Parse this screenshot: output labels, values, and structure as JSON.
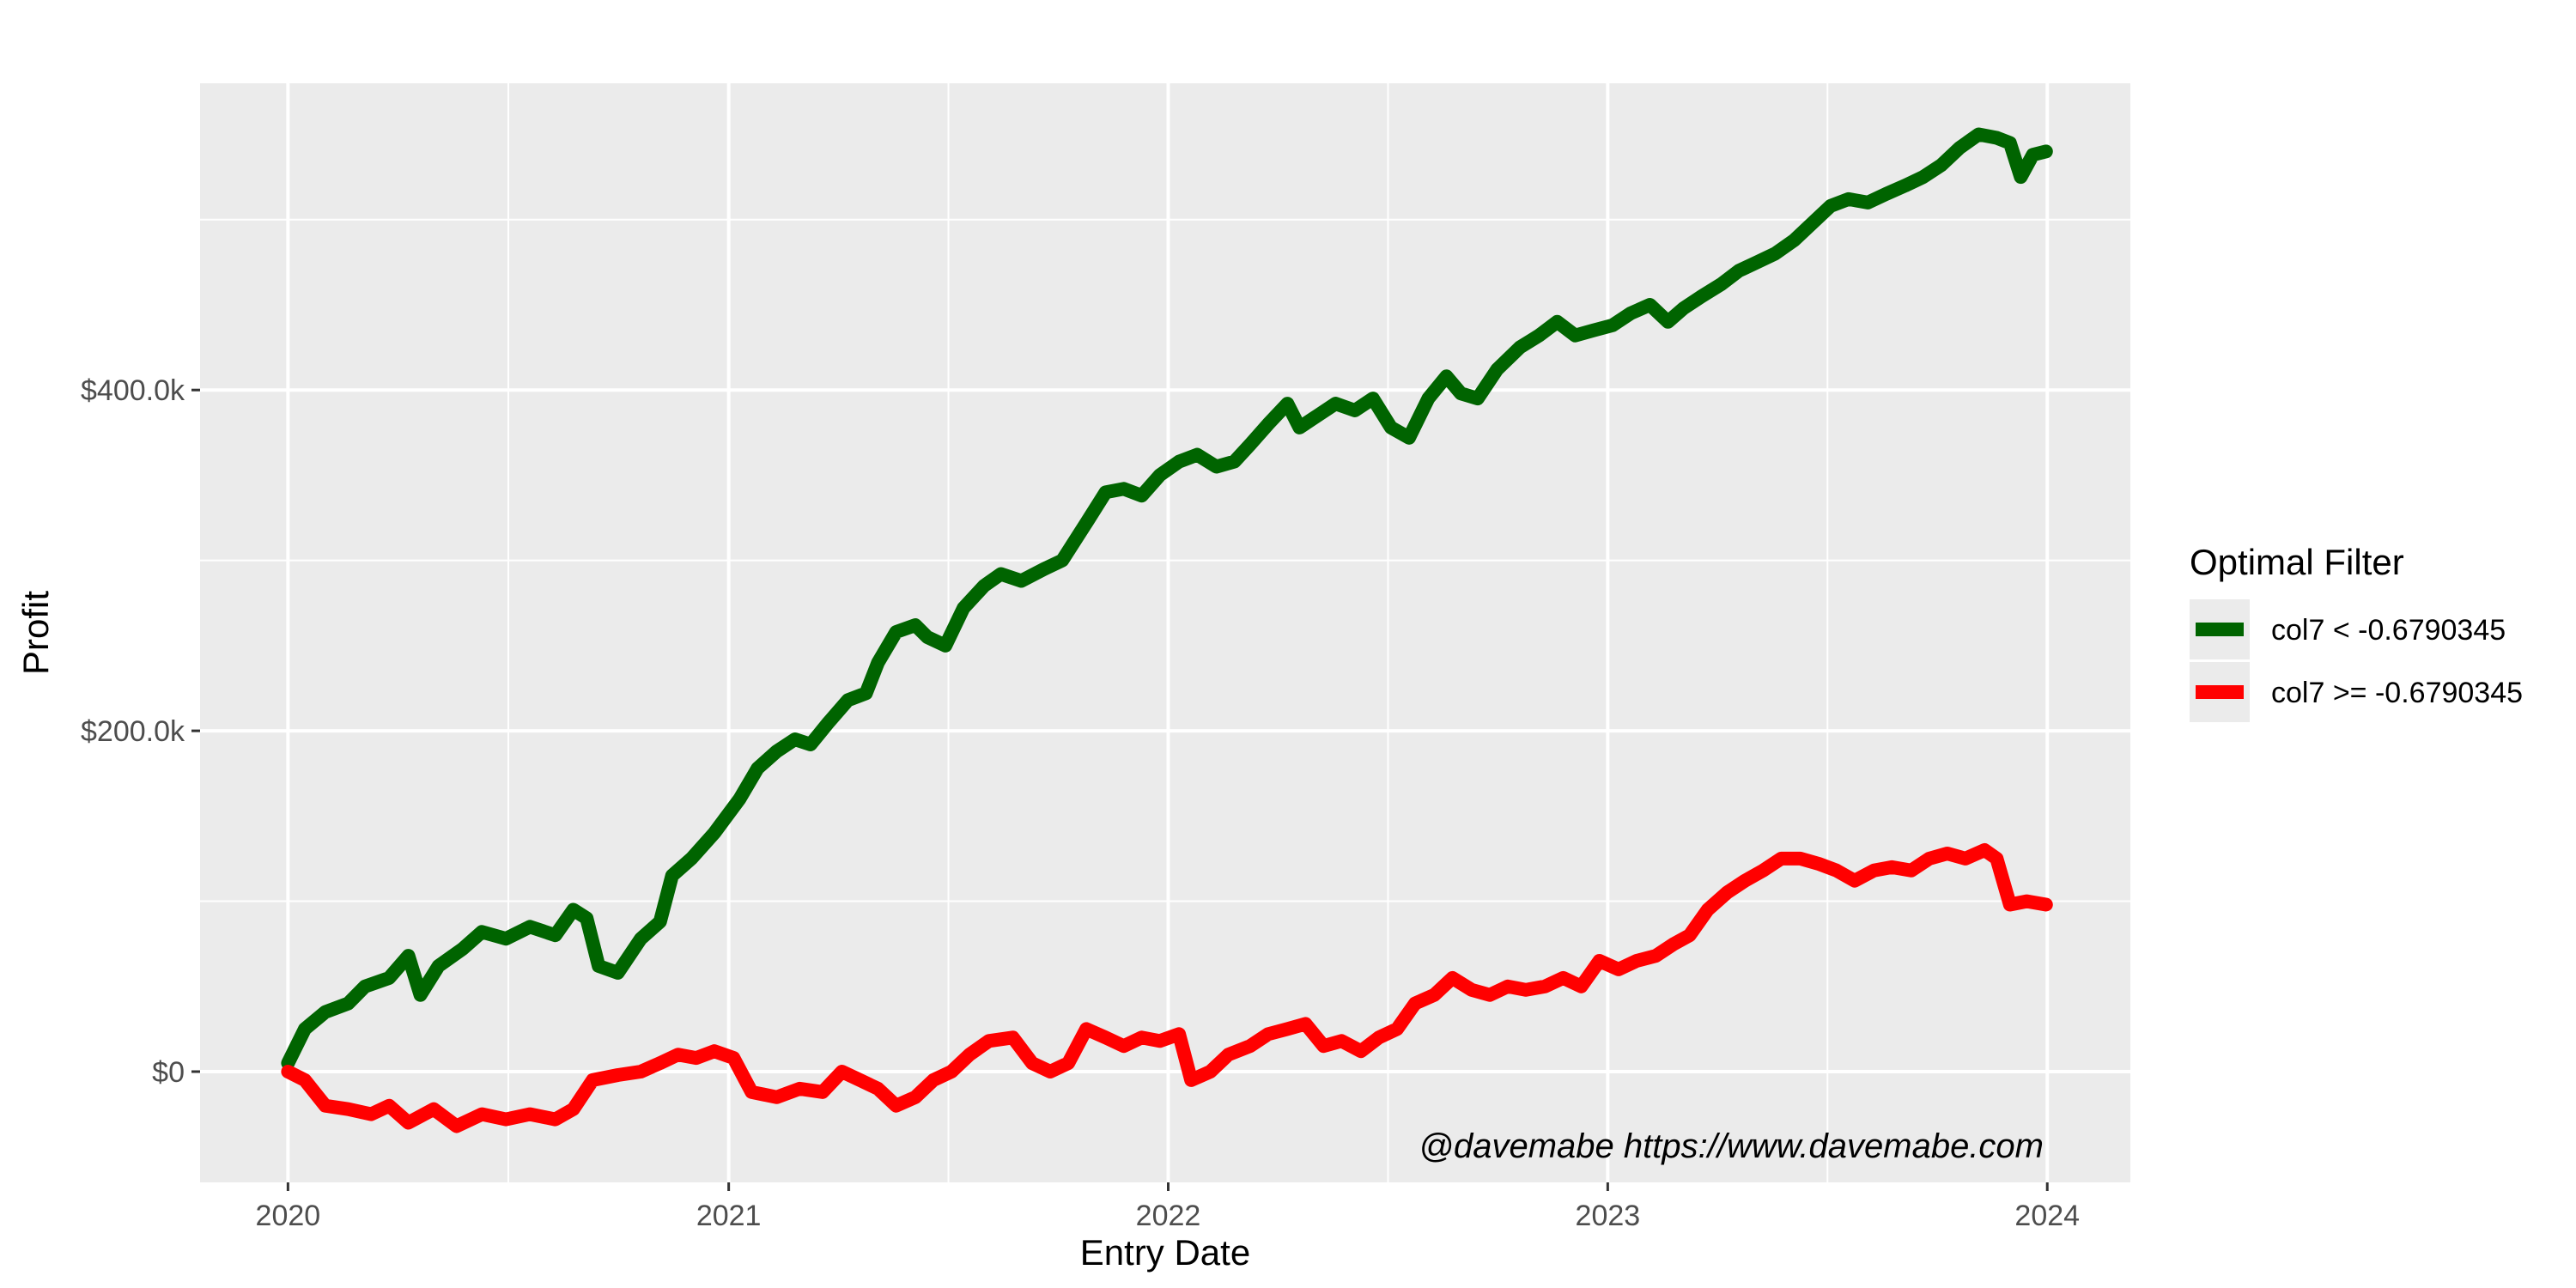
{
  "chart_data": {
    "type": "line",
    "xlabel": "Entry Date",
    "ylabel": "Profit",
    "x_ticks": [
      "2020",
      "2021",
      "2022",
      "2023",
      "2024"
    ],
    "y_ticks": [
      "$0",
      "$200.0k",
      "$400.0k"
    ],
    "xlim": [
      "2019-10-20",
      "2024-03-10"
    ],
    "ylim": [
      -65000,
      580000
    ],
    "grid": true,
    "legend": {
      "title": "Optimal Filter",
      "placement": "right"
    },
    "annotation": "@davemabe https://www.davemabe.com",
    "series": [
      {
        "name": "col7 < -0.6790345",
        "color": "#006400",
        "points": [
          [
            "2020-01-01",
            5000
          ],
          [
            "2020-01-15",
            25000
          ],
          [
            "2020-02-01",
            35000
          ],
          [
            "2020-02-20",
            40000
          ],
          [
            "2020-03-05",
            50000
          ],
          [
            "2020-03-25",
            55000
          ],
          [
            "2020-04-10",
            68000
          ],
          [
            "2020-04-20",
            45000
          ],
          [
            "2020-05-05",
            62000
          ],
          [
            "2020-05-25",
            72000
          ],
          [
            "2020-06-10",
            82000
          ],
          [
            "2020-06-30",
            78000
          ],
          [
            "2020-07-20",
            85000
          ],
          [
            "2020-08-10",
            80000
          ],
          [
            "2020-08-25",
            95000
          ],
          [
            "2020-09-05",
            90000
          ],
          [
            "2020-09-15",
            62000
          ],
          [
            "2020-10-01",
            58000
          ],
          [
            "2020-10-20",
            78000
          ],
          [
            "2020-11-05",
            88000
          ],
          [
            "2020-11-15",
            115000
          ],
          [
            "2020-12-01",
            125000
          ],
          [
            "2020-12-20",
            140000
          ],
          [
            "2021-01-10",
            160000
          ],
          [
            "2021-01-25",
            178000
          ],
          [
            "2021-02-10",
            188000
          ],
          [
            "2021-02-25",
            195000
          ],
          [
            "2021-03-10",
            192000
          ],
          [
            "2021-03-25",
            205000
          ],
          [
            "2021-04-10",
            218000
          ],
          [
            "2021-04-25",
            222000
          ],
          [
            "2021-05-05",
            240000
          ],
          [
            "2021-05-20",
            258000
          ],
          [
            "2021-06-05",
            262000
          ],
          [
            "2021-06-15",
            255000
          ],
          [
            "2021-06-30",
            250000
          ],
          [
            "2021-07-15",
            272000
          ],
          [
            "2021-08-01",
            285000
          ],
          [
            "2021-08-15",
            292000
          ],
          [
            "2021-09-01",
            288000
          ],
          [
            "2021-09-20",
            295000
          ],
          [
            "2021-10-05",
            300000
          ],
          [
            "2021-10-25",
            322000
          ],
          [
            "2021-11-10",
            340000
          ],
          [
            "2021-11-25",
            342000
          ],
          [
            "2021-12-10",
            338000
          ],
          [
            "2021-12-25",
            350000
          ],
          [
            "2022-01-10",
            358000
          ],
          [
            "2022-01-25",
            362000
          ],
          [
            "2022-02-10",
            355000
          ],
          [
            "2022-02-25",
            358000
          ],
          [
            "2022-03-10",
            368000
          ],
          [
            "2022-03-25",
            380000
          ],
          [
            "2022-04-10",
            392000
          ],
          [
            "2022-04-20",
            378000
          ],
          [
            "2022-05-05",
            385000
          ],
          [
            "2022-05-20",
            392000
          ],
          [
            "2022-06-05",
            388000
          ],
          [
            "2022-06-20",
            395000
          ],
          [
            "2022-07-05",
            378000
          ],
          [
            "2022-07-20",
            372000
          ],
          [
            "2022-08-05",
            395000
          ],
          [
            "2022-08-20",
            408000
          ],
          [
            "2022-09-01",
            398000
          ],
          [
            "2022-09-15",
            395000
          ],
          [
            "2022-10-01",
            412000
          ],
          [
            "2022-10-20",
            425000
          ],
          [
            "2022-11-05",
            432000
          ],
          [
            "2022-11-20",
            440000
          ],
          [
            "2022-12-05",
            432000
          ],
          [
            "2022-12-20",
            435000
          ],
          [
            "2023-01-05",
            438000
          ],
          [
            "2023-01-20",
            445000
          ],
          [
            "2023-02-05",
            450000
          ],
          [
            "2023-02-20",
            440000
          ],
          [
            "2023-03-05",
            448000
          ],
          [
            "2023-03-20",
            455000
          ],
          [
            "2023-04-05",
            462000
          ],
          [
            "2023-04-20",
            470000
          ],
          [
            "2023-05-05",
            475000
          ],
          [
            "2023-05-20",
            480000
          ],
          [
            "2023-06-05",
            488000
          ],
          [
            "2023-06-20",
            498000
          ],
          [
            "2023-07-05",
            508000
          ],
          [
            "2023-07-20",
            512000
          ],
          [
            "2023-08-05",
            510000
          ],
          [
            "2023-08-20",
            515000
          ],
          [
            "2023-09-05",
            520000
          ],
          [
            "2023-09-20",
            525000
          ],
          [
            "2023-10-05",
            532000
          ],
          [
            "2023-10-20",
            542000
          ],
          [
            "2023-11-05",
            550000
          ],
          [
            "2023-11-20",
            548000
          ],
          [
            "2023-12-01",
            545000
          ],
          [
            "2023-12-10",
            525000
          ],
          [
            "2023-12-20",
            538000
          ],
          [
            "2023-12-31",
            540000
          ]
        ]
      },
      {
        "name": "col7 >= -0.6790345",
        "color": "#ff0000",
        "points": [
          [
            "2020-01-01",
            0
          ],
          [
            "2020-01-15",
            -5000
          ],
          [
            "2020-02-01",
            -20000
          ],
          [
            "2020-02-20",
            -22000
          ],
          [
            "2020-03-10",
            -25000
          ],
          [
            "2020-03-25",
            -20000
          ],
          [
            "2020-04-10",
            -30000
          ],
          [
            "2020-05-01",
            -22000
          ],
          [
            "2020-05-20",
            -32000
          ],
          [
            "2020-06-10",
            -25000
          ],
          [
            "2020-06-30",
            -28000
          ],
          [
            "2020-07-20",
            -25000
          ],
          [
            "2020-08-10",
            -28000
          ],
          [
            "2020-08-25",
            -22000
          ],
          [
            "2020-09-10",
            -5000
          ],
          [
            "2020-10-01",
            -2000
          ],
          [
            "2020-10-20",
            0
          ],
          [
            "2020-11-05",
            5000
          ],
          [
            "2020-11-20",
            10000
          ],
          [
            "2020-12-05",
            8000
          ],
          [
            "2020-12-20",
            12000
          ],
          [
            "2021-01-05",
            8000
          ],
          [
            "2021-01-20",
            -12000
          ],
          [
            "2021-02-10",
            -15000
          ],
          [
            "2021-03-01",
            -10000
          ],
          [
            "2021-03-20",
            -12000
          ],
          [
            "2021-04-05",
            0
          ],
          [
            "2021-04-20",
            -5000
          ],
          [
            "2021-05-05",
            -10000
          ],
          [
            "2021-05-20",
            -20000
          ],
          [
            "2021-06-05",
            -15000
          ],
          [
            "2021-06-20",
            -5000
          ],
          [
            "2021-07-05",
            0
          ],
          [
            "2021-07-20",
            10000
          ],
          [
            "2021-08-05",
            18000
          ],
          [
            "2021-08-25",
            20000
          ],
          [
            "2021-09-10",
            5000
          ],
          [
            "2021-09-25",
            0
          ],
          [
            "2021-10-10",
            5000
          ],
          [
            "2021-10-25",
            25000
          ],
          [
            "2021-11-10",
            20000
          ],
          [
            "2021-11-25",
            15000
          ],
          [
            "2021-12-10",
            20000
          ],
          [
            "2021-12-25",
            18000
          ],
          [
            "2022-01-10",
            22000
          ],
          [
            "2022-01-20",
            -5000
          ],
          [
            "2022-02-05",
            0
          ],
          [
            "2022-02-20",
            10000
          ],
          [
            "2022-03-10",
            15000
          ],
          [
            "2022-03-25",
            22000
          ],
          [
            "2022-04-10",
            25000
          ],
          [
            "2022-04-25",
            28000
          ],
          [
            "2022-05-10",
            15000
          ],
          [
            "2022-05-25",
            18000
          ],
          [
            "2022-06-10",
            12000
          ],
          [
            "2022-06-25",
            20000
          ],
          [
            "2022-07-10",
            25000
          ],
          [
            "2022-07-25",
            40000
          ],
          [
            "2022-08-10",
            45000
          ],
          [
            "2022-08-25",
            55000
          ],
          [
            "2022-09-10",
            48000
          ],
          [
            "2022-09-25",
            45000
          ],
          [
            "2022-10-10",
            50000
          ],
          [
            "2022-10-25",
            48000
          ],
          [
            "2022-11-10",
            50000
          ],
          [
            "2022-11-25",
            55000
          ],
          [
            "2022-12-10",
            50000
          ],
          [
            "2022-12-25",
            65000
          ],
          [
            "2023-01-10",
            60000
          ],
          [
            "2023-01-25",
            65000
          ],
          [
            "2023-02-10",
            68000
          ],
          [
            "2023-02-25",
            75000
          ],
          [
            "2023-03-10",
            80000
          ],
          [
            "2023-03-25",
            95000
          ],
          [
            "2023-04-10",
            105000
          ],
          [
            "2023-04-25",
            112000
          ],
          [
            "2023-05-10",
            118000
          ],
          [
            "2023-05-25",
            125000
          ],
          [
            "2023-06-10",
            125000
          ],
          [
            "2023-06-25",
            122000
          ],
          [
            "2023-07-10",
            118000
          ],
          [
            "2023-07-25",
            112000
          ],
          [
            "2023-08-10",
            118000
          ],
          [
            "2023-08-25",
            120000
          ],
          [
            "2023-09-10",
            118000
          ],
          [
            "2023-09-25",
            125000
          ],
          [
            "2023-10-10",
            128000
          ],
          [
            "2023-10-25",
            125000
          ],
          [
            "2023-11-10",
            130000
          ],
          [
            "2023-11-20",
            125000
          ],
          [
            "2023-12-01",
            98000
          ],
          [
            "2023-12-15",
            100000
          ],
          [
            "2023-12-31",
            98000
          ]
        ]
      }
    ]
  }
}
